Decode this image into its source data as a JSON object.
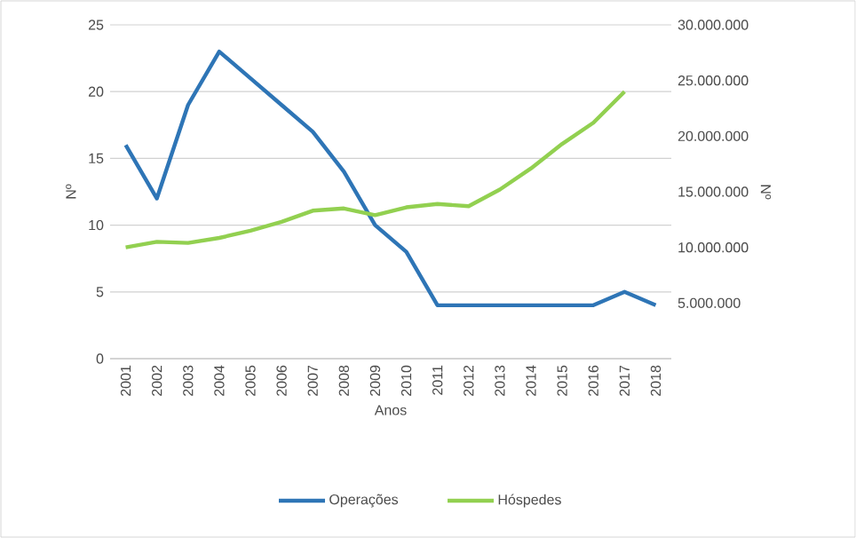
{
  "chart_data": {
    "type": "line",
    "xlabel": "Anos",
    "ylabel": "Nº",
    "y2label": "Nº",
    "categories": [
      "2001",
      "2002",
      "2003",
      "2004",
      "2005",
      "2006",
      "2007",
      "2008",
      "2009",
      "2010",
      "2011",
      "2012",
      "2013",
      "2014",
      "2015",
      "2016",
      "2017",
      "2018"
    ],
    "series": [
      {
        "name": "Operações",
        "color": "#2e75b6",
        "values": [
          16,
          12,
          19,
          23,
          21,
          19,
          17,
          14,
          10,
          8,
          4,
          4,
          4,
          4,
          4,
          4,
          5,
          4
        ]
      },
      {
        "name": "Hóspedes",
        "color": "#92d050",
        "axis": "y2",
        "values": [
          10000000,
          10500000,
          10400000,
          10850000,
          11500000,
          12300000,
          13300000,
          13500000,
          12900000,
          13600000,
          13900000,
          13700000,
          15200000,
          17100000,
          19300000,
          21200000,
          24000000,
          null
        ]
      }
    ],
    "ylim": [
      0,
      25
    ],
    "yticks": [
      0,
      5,
      10,
      15,
      20,
      25
    ],
    "y2lim": [
      0,
      30000000
    ],
    "y2ticks": [
      {
        "value": 0,
        "label": null
      },
      {
        "value": 5000000,
        "label": "5.000.000"
      },
      {
        "value": 10000000,
        "label": "10.000.000"
      },
      {
        "value": 15000000,
        "label": "15.000.000"
      },
      {
        "value": 20000000,
        "label": "20.000.000"
      },
      {
        "value": 25000000,
        "label": "25.000.000"
      },
      {
        "value": 30000000,
        "label": "30.000.000"
      }
    ],
    "grid": "y",
    "legend": "bottom",
    "marker": "none",
    "line_style": "solid"
  }
}
